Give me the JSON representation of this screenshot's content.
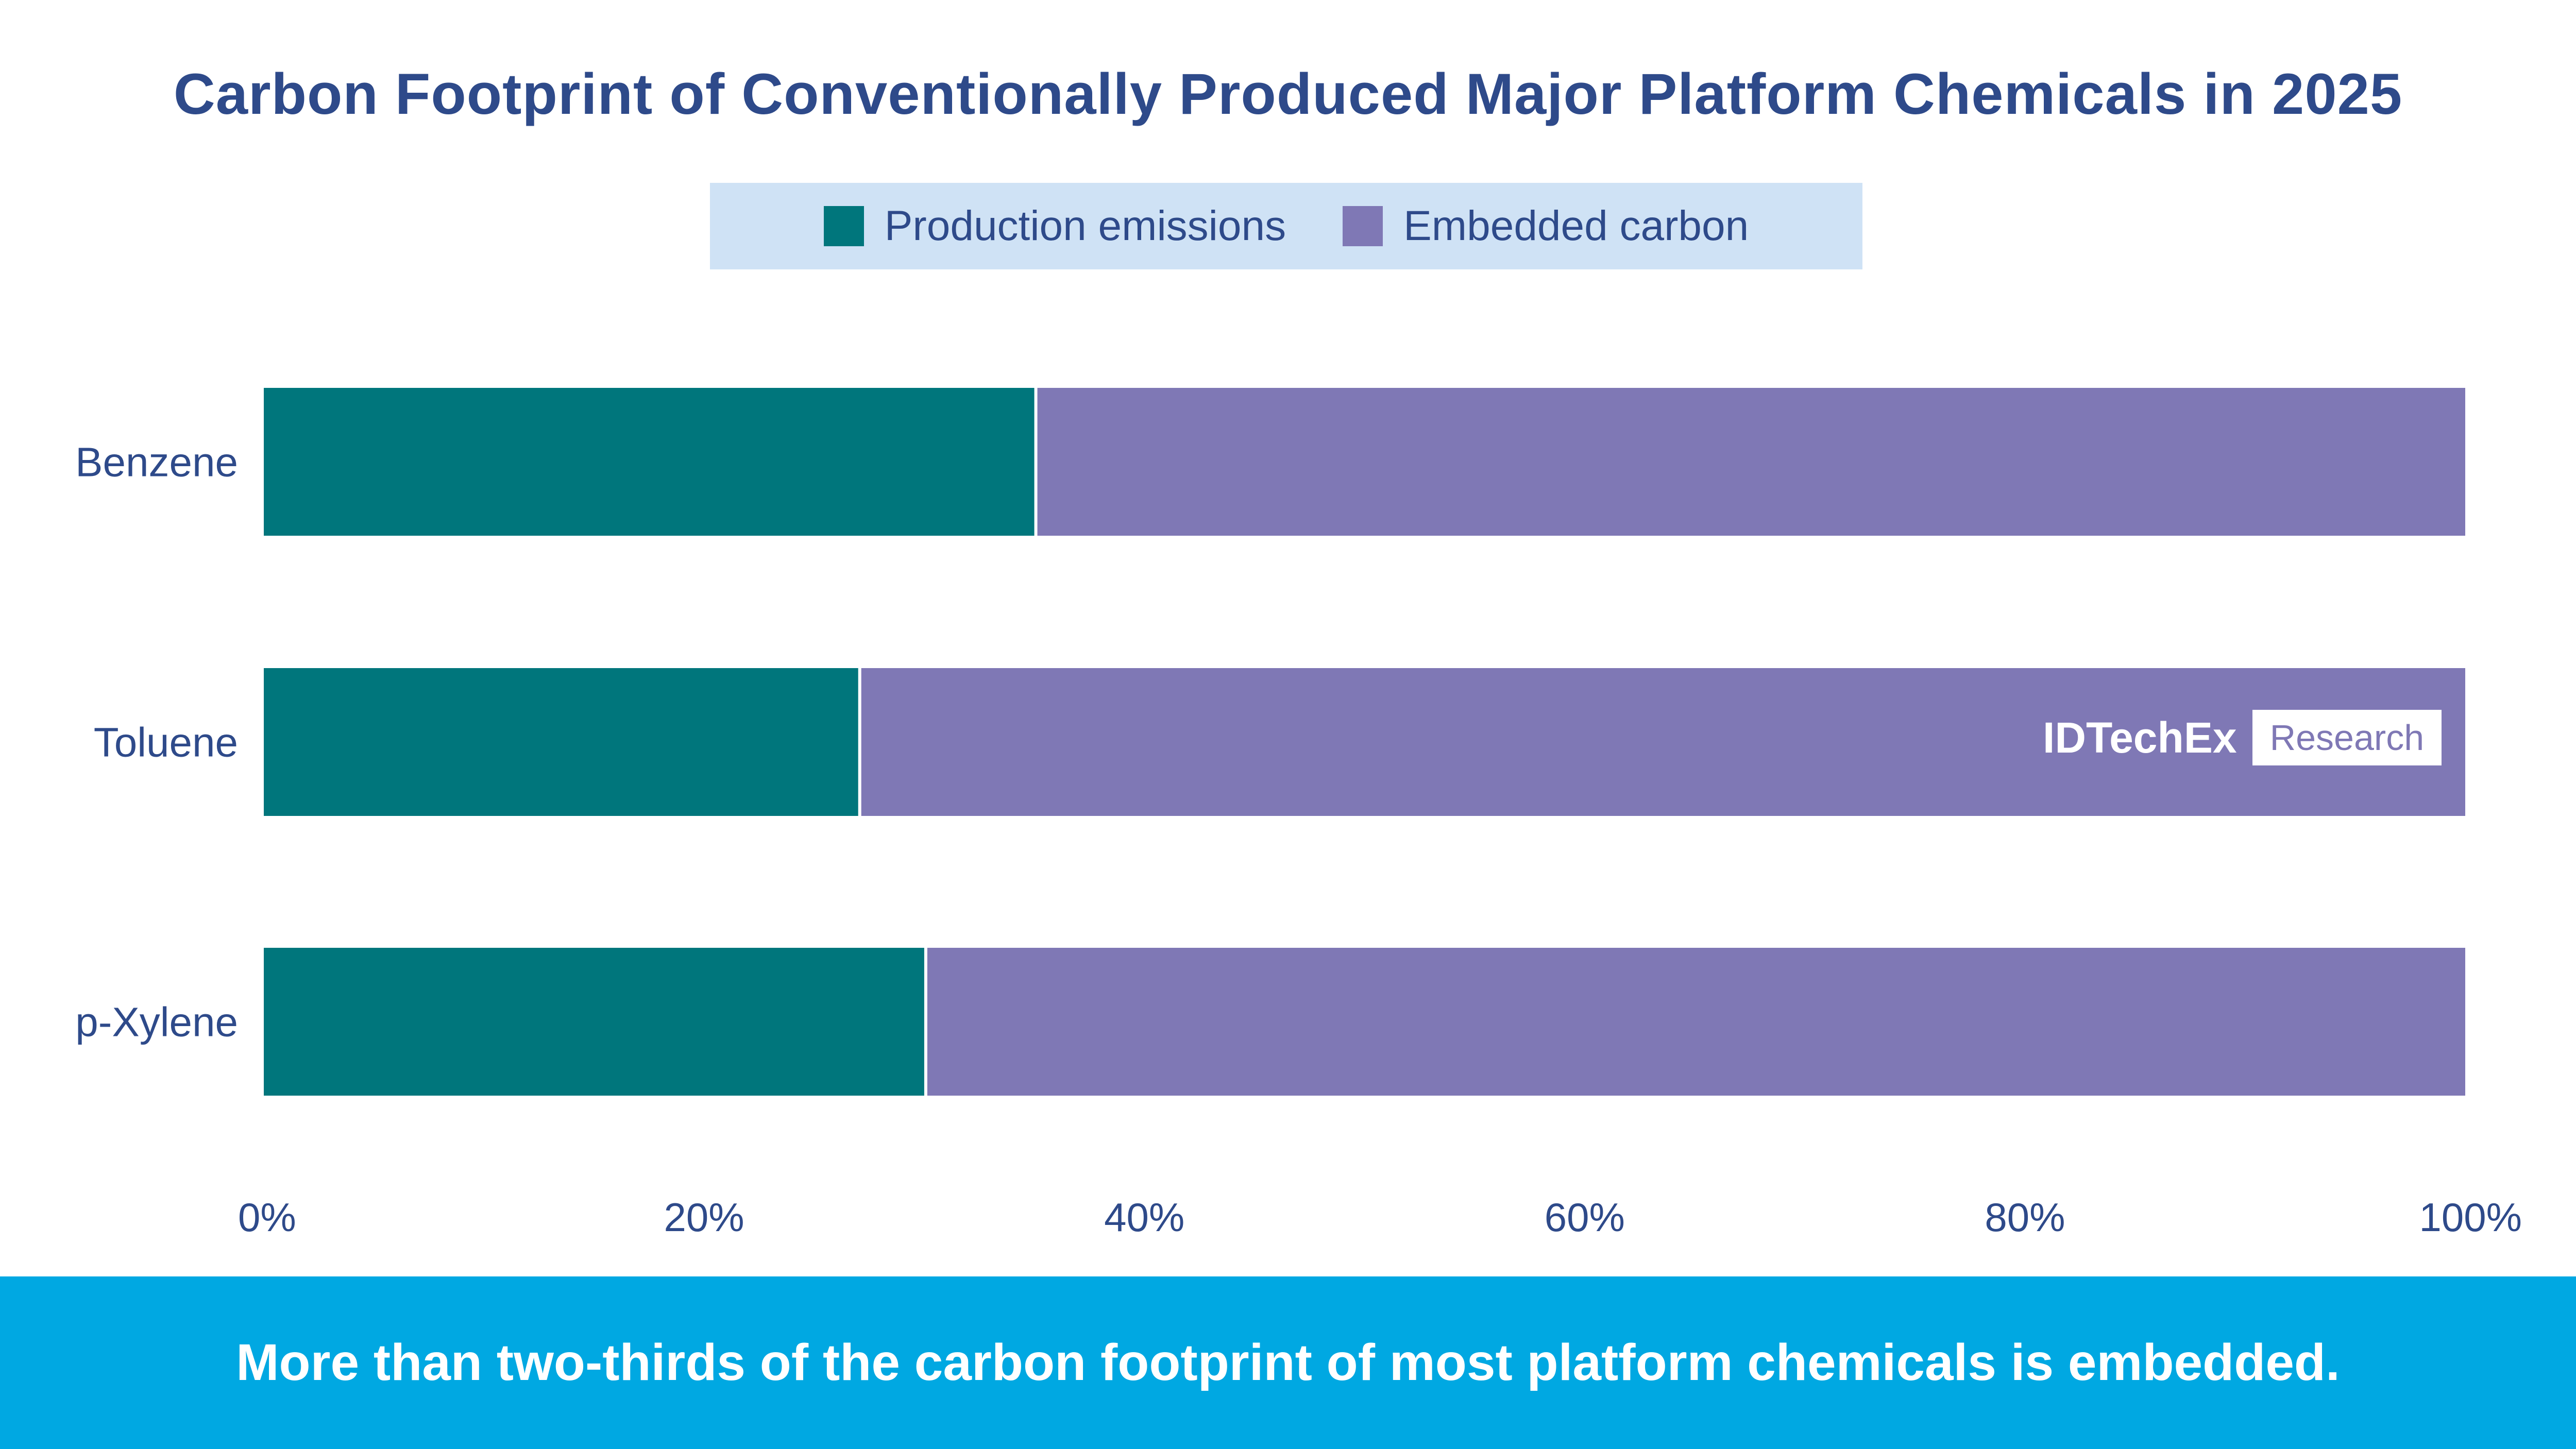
{
  "chart_data": {
    "type": "bar",
    "orientation": "horizontal",
    "stacked": true,
    "title": "Carbon Footprint of Conventionally Produced Major Platform Chemicals in 2025",
    "categories": [
      "Benzene",
      "Toluene",
      "p-Xylene"
    ],
    "series": [
      {
        "name": "Production emissions",
        "values": [
          35,
          27,
          30
        ],
        "color": "#00767c"
      },
      {
        "name": "Embedded carbon",
        "values": [
          65,
          73,
          70
        ],
        "color": "#7f78b5"
      }
    ],
    "xlim": [
      0,
      100
    ],
    "x_ticks": [
      {
        "value": 0,
        "label": "0%"
      },
      {
        "value": 20,
        "label": "20%"
      },
      {
        "value": 40,
        "label": "40%"
      },
      {
        "value": 60,
        "label": "60%"
      },
      {
        "value": 80,
        "label": "80%"
      },
      {
        "value": 100,
        "label": "100%"
      }
    ],
    "legend_position": "top-center",
    "grid": false
  },
  "watermark": {
    "brand": "IDTechEx",
    "tag": "Research"
  },
  "footer": {
    "caption": "More than two-thirds of the carbon footprint of most platform chemicals is embedded."
  }
}
